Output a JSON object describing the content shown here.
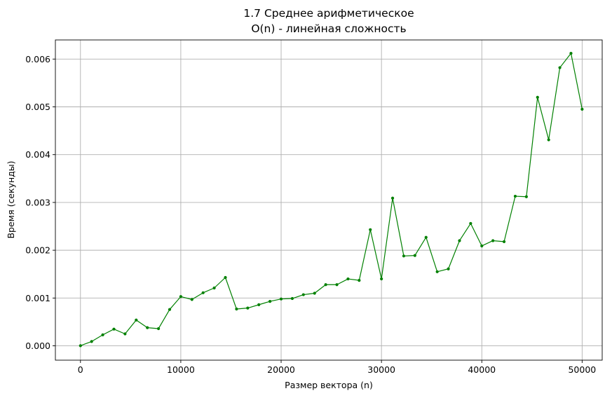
{
  "chart_data": {
    "type": "line",
    "title": "1.7 Среднее арифметическое",
    "subtitle": "O(n) - линейная сложность",
    "xlabel": "Размер вектора (n)",
    "ylabel": "Время (секунды)",
    "xlim": [
      -2500,
      52000
    ],
    "ylim": [
      -0.0003,
      0.0064
    ],
    "xticks": [
      0,
      10000,
      20000,
      30000,
      40000,
      50000
    ],
    "xtick_labels": [
      "0",
      "10000",
      "20000",
      "30000",
      "40000",
      "50000"
    ],
    "yticks": [
      0.0,
      0.001,
      0.002,
      0.003,
      0.004,
      0.005,
      0.006
    ],
    "ytick_labels": [
      "0.000",
      "0.001",
      "0.002",
      "0.003",
      "0.004",
      "0.005",
      "0.006"
    ],
    "grid": true,
    "series": [
      {
        "color": "#008000",
        "marker": "circle",
        "x": [
          0,
          1111,
          2222,
          3333,
          4444,
          5556,
          6667,
          7778,
          8889,
          10000,
          11111,
          12222,
          13333,
          14444,
          15556,
          16667,
          17778,
          18889,
          20000,
          21111,
          22222,
          23333,
          24444,
          25556,
          26667,
          27778,
          28889,
          30000,
          31111,
          32222,
          33333,
          34444,
          35556,
          36667,
          37778,
          38889,
          40000,
          41111,
          42222,
          43333,
          44444,
          45556,
          46667,
          47778,
          48889,
          50000
        ],
        "y": [
          3e-06,
          9e-05,
          0.00023,
          0.00035,
          0.00025,
          0.00054,
          0.00038,
          0.00036,
          0.00076,
          0.00103,
          0.00097,
          0.00111,
          0.00121,
          0.00143,
          0.00077,
          0.00079,
          0.00086,
          0.00093,
          0.00098,
          0.00099,
          0.00107,
          0.0011,
          0.00128,
          0.00128,
          0.0014,
          0.00137,
          0.00243,
          0.0014,
          0.00309,
          0.00188,
          0.00189,
          0.00227,
          0.00155,
          0.00161,
          0.0022,
          0.00256,
          0.00209,
          0.0022,
          0.00218,
          0.00313,
          0.00312,
          0.0052,
          0.00431,
          0.00582,
          0.00612,
          0.00495
        ]
      }
    ]
  }
}
